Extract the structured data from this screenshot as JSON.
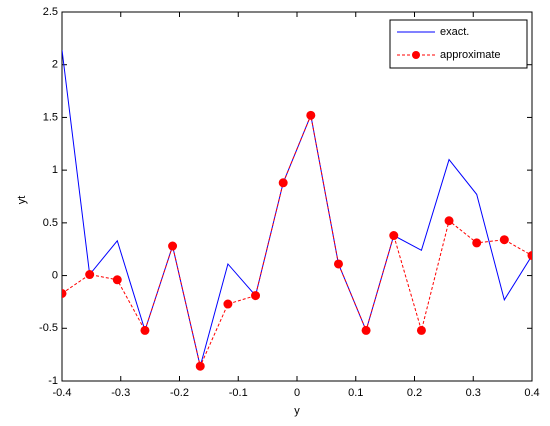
{
  "chart_data": {
    "type": "line",
    "x_label": "y",
    "y_label": "yt",
    "x": [
      -0.4,
      -0.3529,
      -0.3059,
      -0.2588,
      -0.2118,
      -0.1647,
      -0.1176,
      -0.0706,
      -0.0235,
      0.0235,
      0.0706,
      0.1176,
      0.1647,
      0.2118,
      0.2588,
      0.3059,
      0.3529,
      0.4
    ],
    "series": [
      {
        "name": "exact.",
        "color": "#0000ff",
        "dashed": false,
        "markers": false,
        "values": [
          2.14,
          0.01,
          0.33,
          -0.52,
          0.28,
          -0.86,
          0.11,
          -0.19,
          0.88,
          1.52,
          0.11,
          -0.52,
          0.38,
          0.24,
          1.1,
          0.77,
          -0.23,
          0.19
        ]
      },
      {
        "name": "approximate",
        "color": "#ff0000",
        "dashed": true,
        "markers": true,
        "values": [
          -0.17,
          0.01,
          -0.04,
          -0.52,
          0.28,
          -0.86,
          -0.27,
          -0.19,
          0.88,
          1.52,
          0.11,
          -0.52,
          0.38,
          -0.52,
          0.52,
          0.31,
          0.34,
          0.19
        ]
      }
    ],
    "xlim": [
      -0.4,
      0.4
    ],
    "xticks": [
      -0.4,
      -0.3,
      -0.2,
      -0.1,
      0,
      0.1,
      0.2,
      0.3,
      0.4
    ],
    "ylim": [
      -1,
      2.5
    ],
    "yticks": [
      -1,
      -0.5,
      0,
      0.5,
      1,
      1.5,
      2,
      2.5
    ],
    "legend": "upper-right"
  }
}
